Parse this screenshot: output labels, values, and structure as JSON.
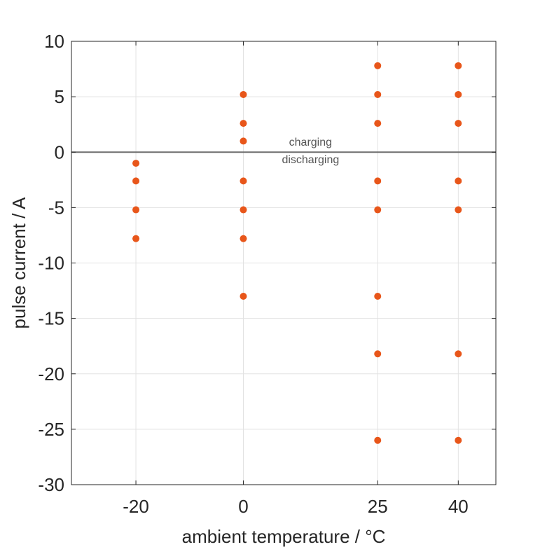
{
  "chart_data": {
    "type": "scatter",
    "title": "",
    "xlabel": "ambient temperature / °C",
    "ylabel": "pulse current / A",
    "xlim": [
      -32,
      47
    ],
    "ylim": [
      -30,
      10
    ],
    "x_ticks": [
      -20,
      0,
      25,
      40
    ],
    "x_tick_labels": [
      "-20",
      "0",
      "25",
      "40"
    ],
    "y_ticks": [
      10,
      5,
      0,
      -5,
      -10,
      -15,
      -20,
      -25,
      -30
    ],
    "y_tick_labels": [
      "10",
      "5",
      "0",
      "-5",
      "-10",
      "-15",
      "-20",
      "-25",
      "-30"
    ],
    "grid": true,
    "zero_line": {
      "y": 0,
      "color": "#6e6e6e"
    },
    "annotations": [
      {
        "text": "charging",
        "x": 12.5,
        "y": 0.6
      },
      {
        "text": "discharging",
        "x": 12.5,
        "y": -1.0
      }
    ],
    "series": [
      {
        "color": "#e8561a",
        "points": [
          {
            "x": -20,
            "y": -1.0
          },
          {
            "x": -20,
            "y": -2.6
          },
          {
            "x": -20,
            "y": -5.2
          },
          {
            "x": -20,
            "y": -7.8
          },
          {
            "x": 0,
            "y": 5.2
          },
          {
            "x": 0,
            "y": 2.6
          },
          {
            "x": 0,
            "y": 1.0
          },
          {
            "x": 0,
            "y": -2.6
          },
          {
            "x": 0,
            "y": -5.2
          },
          {
            "x": 0,
            "y": -7.8
          },
          {
            "x": 0,
            "y": -13.0
          },
          {
            "x": 25,
            "y": 7.8
          },
          {
            "x": 25,
            "y": 5.2
          },
          {
            "x": 25,
            "y": 2.6
          },
          {
            "x": 25,
            "y": -2.6
          },
          {
            "x": 25,
            "y": -5.2
          },
          {
            "x": 25,
            "y": -13.0
          },
          {
            "x": 25,
            "y": -18.2
          },
          {
            "x": 25,
            "y": -26.0
          },
          {
            "x": 40,
            "y": 7.8
          },
          {
            "x": 40,
            "y": 5.2
          },
          {
            "x": 40,
            "y": 2.6
          },
          {
            "x": 40,
            "y": -2.6
          },
          {
            "x": 40,
            "y": -5.2
          },
          {
            "x": 40,
            "y": -18.2
          },
          {
            "x": 40,
            "y": -26.0
          }
        ]
      }
    ]
  }
}
